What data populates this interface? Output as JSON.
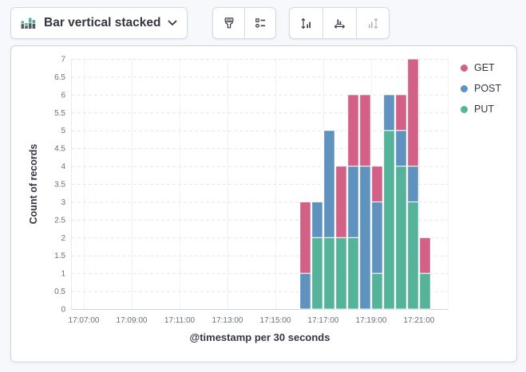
{
  "toolbar": {
    "chart_type_label": "Bar vertical stacked",
    "icons": {
      "dropdown": "stacked-bar-chart-icon",
      "dropdown_caret": "chevron-down-icon",
      "style_group": [
        "paintbrush-icon",
        "legend-list-icon"
      ],
      "axes_group": [
        "left-axis-icon",
        "bottom-axis-icon",
        "right-axis-icon"
      ],
      "right_axis_disabled": true
    }
  },
  "colors": {
    "get": "#D36086",
    "post": "#6092C0",
    "put": "#54B399",
    "icon_green": "#54B399",
    "icon_gray": "#545B66",
    "tick_text": "#69707d",
    "axis_line": "#ccd2dc",
    "grid_h": "#e4e8ee",
    "grid_v": "#eef1f5",
    "card_border": "#ccd3e0"
  },
  "chart_data": {
    "type": "bar",
    "stacked": true,
    "orientation": "vertical",
    "title": "",
    "xlabel": "@timestamp per 30 seconds",
    "ylabel": "Count of records",
    "ylim": [
      0,
      7
    ],
    "y_tick_step": 0.5,
    "grid": true,
    "legend_position": "right",
    "x_axis_tick_labels": [
      "17:07:00",
      "17:09:00",
      "17:11:00",
      "17:13:00",
      "17:15:00",
      "17:17:00",
      "17:19:00",
      "17:21:00"
    ],
    "x_tick_interval_seconds": 120,
    "bucket_seconds": 30,
    "categories": [
      "17:16:00",
      "17:16:30",
      "17:17:00",
      "17:17:30",
      "17:18:00",
      "17:18:30",
      "17:19:00",
      "17:19:30",
      "17:20:00",
      "17:20:30",
      "17:21:00"
    ],
    "series": [
      {
        "name": "GET",
        "color": "#D36086",
        "values": [
          2,
          0,
          0,
          2,
          2,
          2,
          1,
          0,
          1,
          3,
          1
        ]
      },
      {
        "name": "POST",
        "color": "#6092C0",
        "values": [
          1,
          1,
          3,
          0,
          2,
          4,
          2,
          1,
          1,
          1,
          0
        ]
      },
      {
        "name": "PUT",
        "color": "#54B399",
        "values": [
          0,
          2,
          2,
          2,
          2,
          0,
          1,
          5,
          4,
          3,
          1
        ]
      }
    ],
    "stack_order_bottom_to_top": [
      "PUT",
      "POST",
      "GET"
    ],
    "totals": [
      3,
      3,
      5,
      4,
      6,
      6,
      4,
      6,
      6,
      7,
      2
    ]
  }
}
